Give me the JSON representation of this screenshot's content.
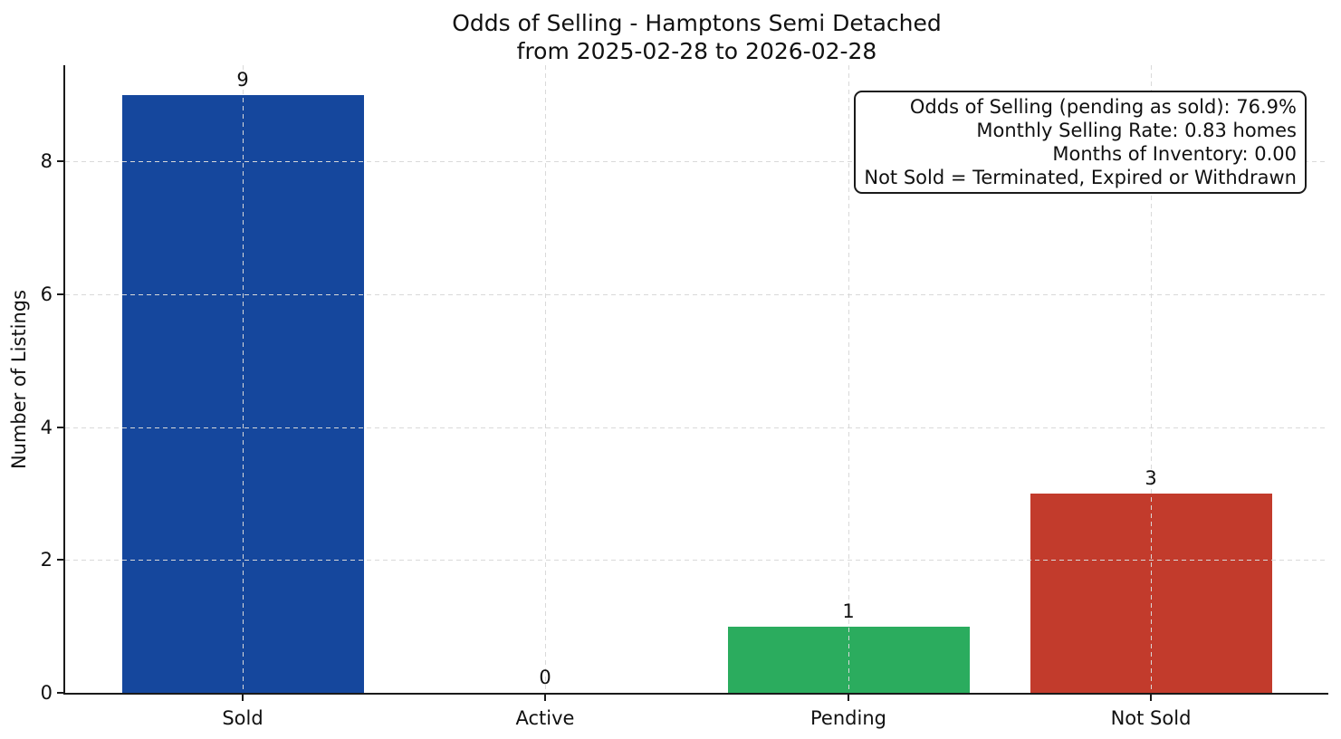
{
  "chart_data": {
    "type": "bar",
    "title": "Odds of Selling - Hamptons Semi Detached",
    "subtitle": "from 2025-02-28 to 2026-02-28",
    "categories": [
      "Sold",
      "Active",
      "Pending",
      "Not Sold"
    ],
    "values": [
      9,
      0,
      1,
      3
    ],
    "bar_colors": [
      "#15479d",
      "#999999",
      "#2bac5e",
      "#c23b2c"
    ],
    "ylabel": "Number of Listings",
    "yticks": [
      0,
      2,
      4,
      6,
      8
    ],
    "ylim": [
      0,
      9.45
    ],
    "grid": true,
    "grid_style": "dashed",
    "grid_color": "#d9d9d9",
    "axis_color": "#1a1a1a",
    "legend_position": "none",
    "annotation_box": {
      "position": "top-right",
      "lines": [
        "Odds of Selling (pending as sold): 76.9%",
        "Monthly Selling Rate: 0.83 homes",
        "Months of Inventory: 0.00",
        "Not Sold = Terminated, Expired or Withdrawn"
      ]
    }
  }
}
